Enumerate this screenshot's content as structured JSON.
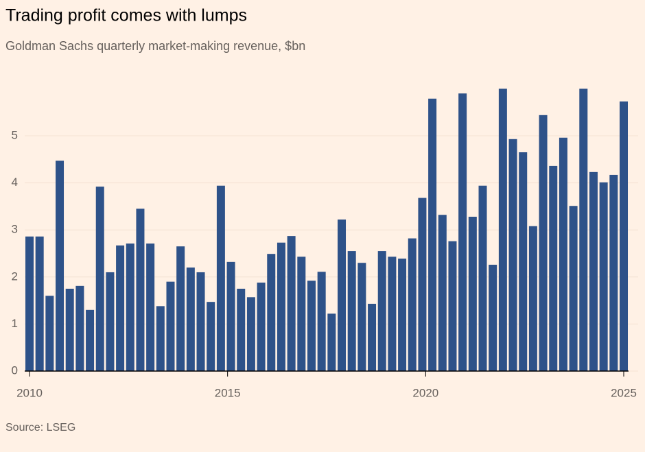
{
  "chart_data": {
    "type": "bar",
    "title": "Trading profit comes with lumps",
    "subtitle": "Goldman Sachs quarterly market-making revenue, $bn",
    "source": "Source: LSEG",
    "color": "#2e5289",
    "values": [
      2.86,
      2.86,
      1.6,
      4.47,
      1.75,
      1.81,
      1.3,
      3.92,
      2.1,
      2.67,
      2.71,
      3.45,
      2.71,
      1.38,
      1.9,
      2.65,
      2.2,
      2.1,
      1.47,
      3.94,
      2.32,
      1.75,
      1.57,
      1.88,
      2.49,
      2.73,
      2.87,
      2.43,
      1.92,
      2.11,
      1.22,
      3.22,
      2.55,
      2.3,
      1.43,
      2.55,
      2.43,
      2.39,
      2.82,
      3.68,
      5.79,
      3.32,
      2.76,
      5.9,
      3.28,
      3.94,
      2.26,
      6.0,
      4.93,
      4.65,
      3.08,
      5.44,
      4.36,
      4.96,
      3.51,
      6.0,
      4.23,
      4.01,
      4.17,
      5.73
    ],
    "xlim": [
      2010,
      2025
    ],
    "xticks": [
      2010,
      2015,
      2020,
      2025
    ],
    "ylim": [
      0,
      6
    ],
    "yticks": [
      0,
      1,
      2,
      3,
      4,
      5
    ],
    "grid": true
  }
}
